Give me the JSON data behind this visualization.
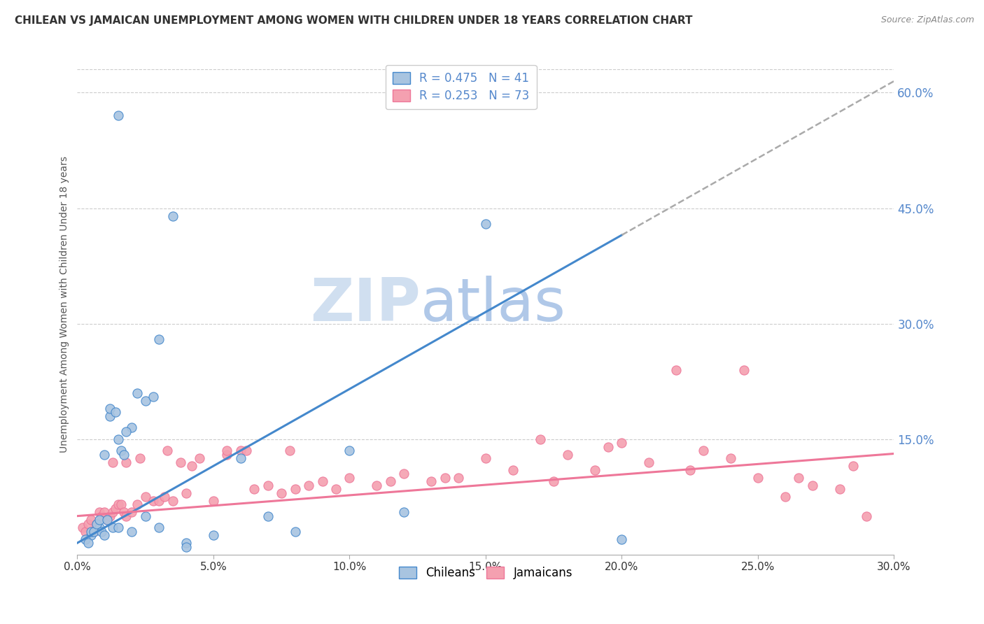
{
  "title": "CHILEAN VS JAMAICAN UNEMPLOYMENT AMONG WOMEN WITH CHILDREN UNDER 18 YEARS CORRELATION CHART",
  "source": "Source: ZipAtlas.com",
  "ylabel": "Unemployment Among Women with Children Under 18 years",
  "xlabel_ticks": [
    "0.0%",
    "5.0%",
    "10.0%",
    "15.0%",
    "20.0%",
    "25.0%",
    "30.0%"
  ],
  "xlabel_vals": [
    0.0,
    5.0,
    10.0,
    15.0,
    20.0,
    25.0,
    30.0
  ],
  "ylabel_right_ticks": [
    "15.0%",
    "30.0%",
    "45.0%",
    "60.0%"
  ],
  "ylabel_right_vals": [
    15.0,
    30.0,
    45.0,
    60.0
  ],
  "xmin": 0.0,
  "xmax": 30.0,
  "ymin": 0.0,
  "ymax": 65.0,
  "legend_r1": "R = 0.475",
  "legend_n1": "N = 41",
  "legend_r2": "R = 0.253",
  "legend_n2": "N = 73",
  "color_chilean": "#a8c4e0",
  "color_jamaican": "#f4a0b0",
  "color_line_chilean": "#4488cc",
  "color_line_jamaican": "#ee7799",
  "color_title": "#333333",
  "color_axis_label": "#555555",
  "color_right_tick": "#5588cc",
  "watermark_zip": "ZIP",
  "watermark_atlas": "atlas",
  "watermark_color_zip": "#d0dff0",
  "watermark_color_atlas": "#b0c8e8",
  "legend_bottom_labels": [
    "Chileans",
    "Jamaicans"
  ],
  "chilean_x": [
    1.5,
    0.5,
    0.8,
    1.0,
    1.2,
    1.5,
    2.0,
    2.5,
    3.0,
    3.5,
    4.0,
    5.0,
    7.0,
    10.0,
    15.0,
    0.3,
    0.4,
    0.5,
    0.6,
    0.7,
    0.8,
    0.9,
    1.0,
    1.1,
    1.2,
    1.3,
    1.4,
    1.5,
    1.6,
    1.7,
    1.8,
    2.0,
    2.2,
    2.5,
    2.8,
    3.0,
    4.0,
    6.0,
    8.0,
    12.0,
    20.0
  ],
  "chilean_y": [
    57.0,
    2.5,
    3.5,
    13.0,
    18.0,
    15.0,
    16.5,
    20.0,
    28.0,
    44.0,
    1.5,
    2.5,
    5.0,
    13.5,
    43.0,
    2.0,
    1.5,
    3.0,
    3.0,
    4.0,
    4.5,
    3.0,
    2.5,
    4.5,
    19.0,
    3.5,
    18.5,
    3.5,
    13.5,
    13.0,
    16.0,
    3.0,
    21.0,
    5.0,
    20.5,
    3.5,
    1.0,
    12.5,
    3.0,
    5.5,
    2.0
  ],
  "jamaican_x": [
    0.2,
    0.3,
    0.4,
    0.5,
    0.6,
    0.7,
    0.8,
    0.9,
    1.0,
    1.1,
    1.2,
    1.3,
    1.4,
    1.5,
    1.6,
    1.7,
    1.8,
    2.0,
    2.2,
    2.5,
    2.8,
    3.0,
    3.2,
    3.5,
    3.8,
    4.0,
    4.2,
    4.5,
    5.0,
    5.5,
    6.0,
    6.2,
    6.5,
    7.0,
    7.5,
    7.8,
    8.0,
    8.5,
    9.0,
    9.5,
    10.0,
    11.0,
    11.5,
    12.0,
    13.0,
    13.5,
    14.0,
    15.0,
    16.0,
    17.0,
    17.5,
    18.0,
    19.0,
    19.5,
    20.0,
    21.0,
    22.0,
    22.5,
    23.0,
    24.0,
    24.5,
    25.0,
    26.0,
    26.5,
    27.0,
    28.0,
    28.5,
    29.0,
    1.3,
    1.8,
    2.3,
    3.3,
    5.5
  ],
  "jamaican_y": [
    3.5,
    3.0,
    4.0,
    4.5,
    3.0,
    4.0,
    5.5,
    5.0,
    5.5,
    4.5,
    5.0,
    5.5,
    6.0,
    6.5,
    6.5,
    5.5,
    5.0,
    5.5,
    6.5,
    7.5,
    7.0,
    7.0,
    7.5,
    7.0,
    12.0,
    8.0,
    11.5,
    12.5,
    7.0,
    13.0,
    13.5,
    13.5,
    8.5,
    9.0,
    8.0,
    13.5,
    8.5,
    9.0,
    9.5,
    8.5,
    10.0,
    9.0,
    9.5,
    10.5,
    9.5,
    10.0,
    10.0,
    12.5,
    11.0,
    15.0,
    9.5,
    13.0,
    11.0,
    14.0,
    14.5,
    12.0,
    24.0,
    11.0,
    13.5,
    12.5,
    24.0,
    10.0,
    7.5,
    10.0,
    9.0,
    8.5,
    11.5,
    5.0,
    12.0,
    12.0,
    12.5,
    13.5,
    13.5
  ],
  "chilean_trend_x": [
    0.0,
    20.0,
    30.0
  ],
  "chilean_trend_solid_end": 20.0,
  "jamaican_trend_x": [
    0.0,
    30.0
  ]
}
